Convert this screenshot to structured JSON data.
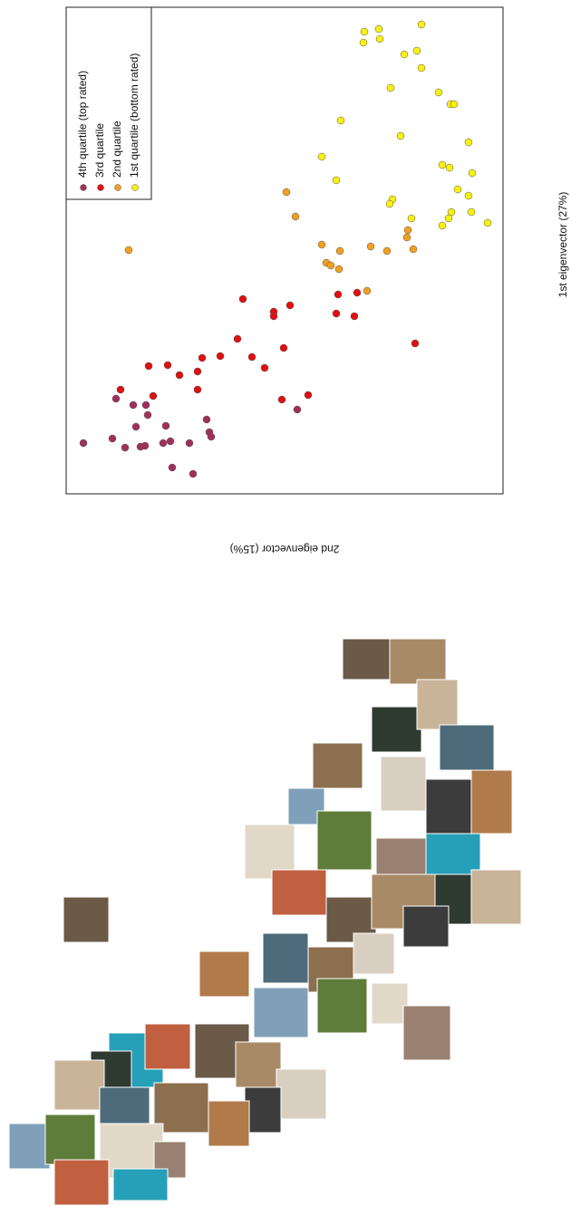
{
  "chart_data": {
    "type": "scatter",
    "x_label": "2nd eigenvector (15%)",
    "y_label": "1st eigenvector (27%)",
    "xlim": [
      73,
      555
    ],
    "ylim": [
      545,
      8
    ],
    "legend": "top-left",
    "series": [
      {
        "name": "4th quartile (top rated)",
        "color": "#a0305a",
        "x": [
          128,
          147,
          161,
          163,
          183,
          228,
          150,
          124,
          92,
          138,
          155,
          160,
          180,
          188,
          209,
          231,
          233,
          190,
          213,
          328
        ],
        "values": [
          440,
          447,
          447,
          458,
          470,
          463,
          471,
          484,
          489,
          494,
          493,
          492,
          489,
          487,
          489,
          477,
          482,
          516,
          523,
          452
        ]
      },
      {
        "name": "3rd quartile",
        "color": "#e01010",
        "x": [
          268,
          394,
          373,
          320,
          302,
          371,
          302,
          391,
          262,
          458,
          313,
          243,
          278,
          223,
          185,
          164,
          292,
          218,
          198,
          340,
          311,
          169,
          218,
          133
        ],
        "values": [
          330,
          323,
          325,
          337,
          344,
          346,
          349,
          349,
          374,
          379,
          384,
          393,
          394,
          395,
          403,
          404,
          406,
          410,
          414,
          436,
          441,
          437,
          430,
          430
        ]
      },
      {
        "name": "2nd quartile",
        "color": "#f0a020",
        "x": [
          316,
          326,
          450,
          449,
          142,
          355,
          375,
          409,
          427,
          456,
          360,
          365,
          374,
          405
        ],
        "values": [
          212,
          239,
          254,
          262,
          276,
          270,
          277,
          272,
          277,
          275,
          290,
          293,
          297,
          321
        ]
      },
      {
        "name": "1st quartile (bottom rated)",
        "color": "#f8f010",
        "x": [
          402,
          418,
          465,
          401,
          419,
          446,
          460,
          465,
          431,
          484,
          497,
          501,
          376,
          442,
          517,
          355,
          488,
          496,
          521,
          371,
          505,
          517,
          433,
          430,
          520,
          498,
          495,
          454,
          488,
          538
        ],
        "values": [
          35,
          32,
          27,
          47,
          43,
          60,
          56,
          75,
          97,
          102,
          115,
          115,
          133,
          150,
          157,
          173,
          182,
          185,
          191,
          199,
          209,
          216,
          220,
          225,
          234,
          234,
          241,
          241,
          249,
          246
        ]
      }
    ]
  }
}
